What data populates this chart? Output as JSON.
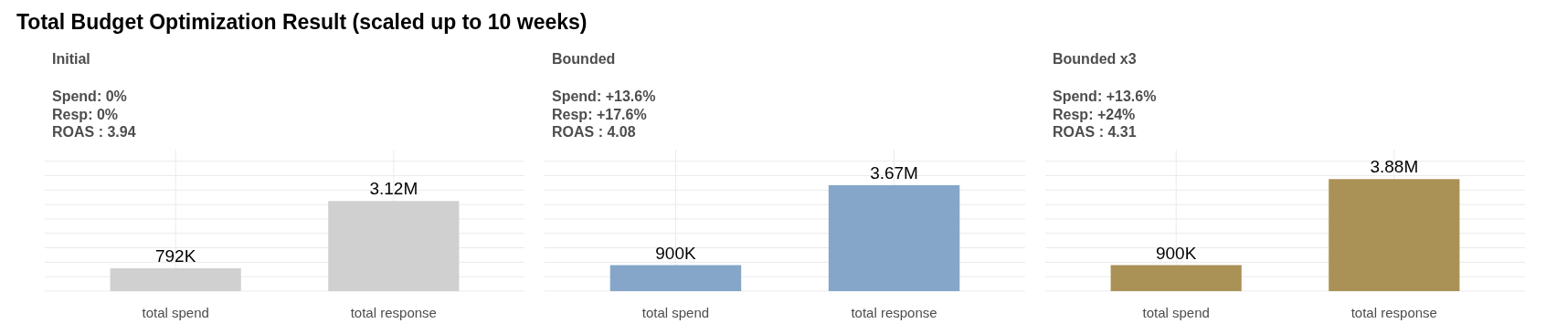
{
  "chart_data": [
    {
      "type": "bar",
      "title": "Initial",
      "subtitle": "Spend: 0%\nResp: 0%\nROAS : 3.94",
      "annotations": [
        "Total Budget Optimization Result (scaled up to 10 weeks)"
      ],
      "categories": [
        "total spend",
        "total response"
      ],
      "values": [
        792000,
        3120000
      ],
      "value_labels": [
        "792K",
        "3.12M"
      ],
      "color": "#d0d0d0",
      "ylim": [
        0,
        4900000
      ],
      "yticks": [
        {
          "value": 0,
          "label": null
        },
        {
          "value": 500000,
          "label": null
        },
        {
          "value": 1000000,
          "label": null
        },
        {
          "value": 1500000,
          "label": null
        },
        {
          "value": 2000000,
          "label": null
        },
        {
          "value": 2500000,
          "label": null
        },
        {
          "value": 3000000,
          "label": null
        },
        {
          "value": 3500000,
          "label": null
        },
        {
          "value": 4000000,
          "label": null
        },
        {
          "value": 4500000,
          "label": null
        }
      ],
      "grid": true,
      "tick_labels": "x"
    },
    {
      "type": "bar",
      "title": "Bounded",
      "subtitle": "Spend: +13.6%\nResp: +17.6%\nROAS : 4.08",
      "categories": [
        "total spend",
        "total response"
      ],
      "values": [
        900000,
        3670000
      ],
      "value_labels": [
        "900K",
        "3.67M"
      ],
      "color": "#85a6c8",
      "ylim": [
        0,
        4900000
      ],
      "yticks": [
        {
          "value": 0,
          "label": null
        },
        {
          "value": 500000,
          "label": null
        },
        {
          "value": 1000000,
          "label": null
        },
        {
          "value": 1500000,
          "label": null
        },
        {
          "value": 2000000,
          "label": null
        },
        {
          "value": 2500000,
          "label": null
        },
        {
          "value": 3000000,
          "label": null
        },
        {
          "value": 3500000,
          "label": null
        },
        {
          "value": 4000000,
          "label": null
        },
        {
          "value": 4500000,
          "label": null
        }
      ],
      "grid": true,
      "tick_labels": "x"
    },
    {
      "type": "bar",
      "title": "Bounded x3",
      "subtitle": "Spend: +13.6%\nResp: +24%\nROAS : 4.31",
      "categories": [
        "total spend",
        "total response"
      ],
      "values": [
        900000,
        3880000
      ],
      "value_labels": [
        "900K",
        "3.88M"
      ],
      "color": "#aa9156",
      "ylim": [
        0,
        4900000
      ],
      "yticks": [
        {
          "value": 0,
          "label": null
        },
        {
          "value": 500000,
          "label": null
        },
        {
          "value": 1000000,
          "label": null
        },
        {
          "value": 1500000,
          "label": null
        },
        {
          "value": 2000000,
          "label": null
        },
        {
          "value": 2500000,
          "label": null
        },
        {
          "value": 3000000,
          "label": null
        },
        {
          "value": 3500000,
          "label": null
        },
        {
          "value": 4000000,
          "label": null
        },
        {
          "value": 4500000,
          "label": null
        }
      ],
      "grid": true,
      "tick_labels": "x"
    }
  ]
}
